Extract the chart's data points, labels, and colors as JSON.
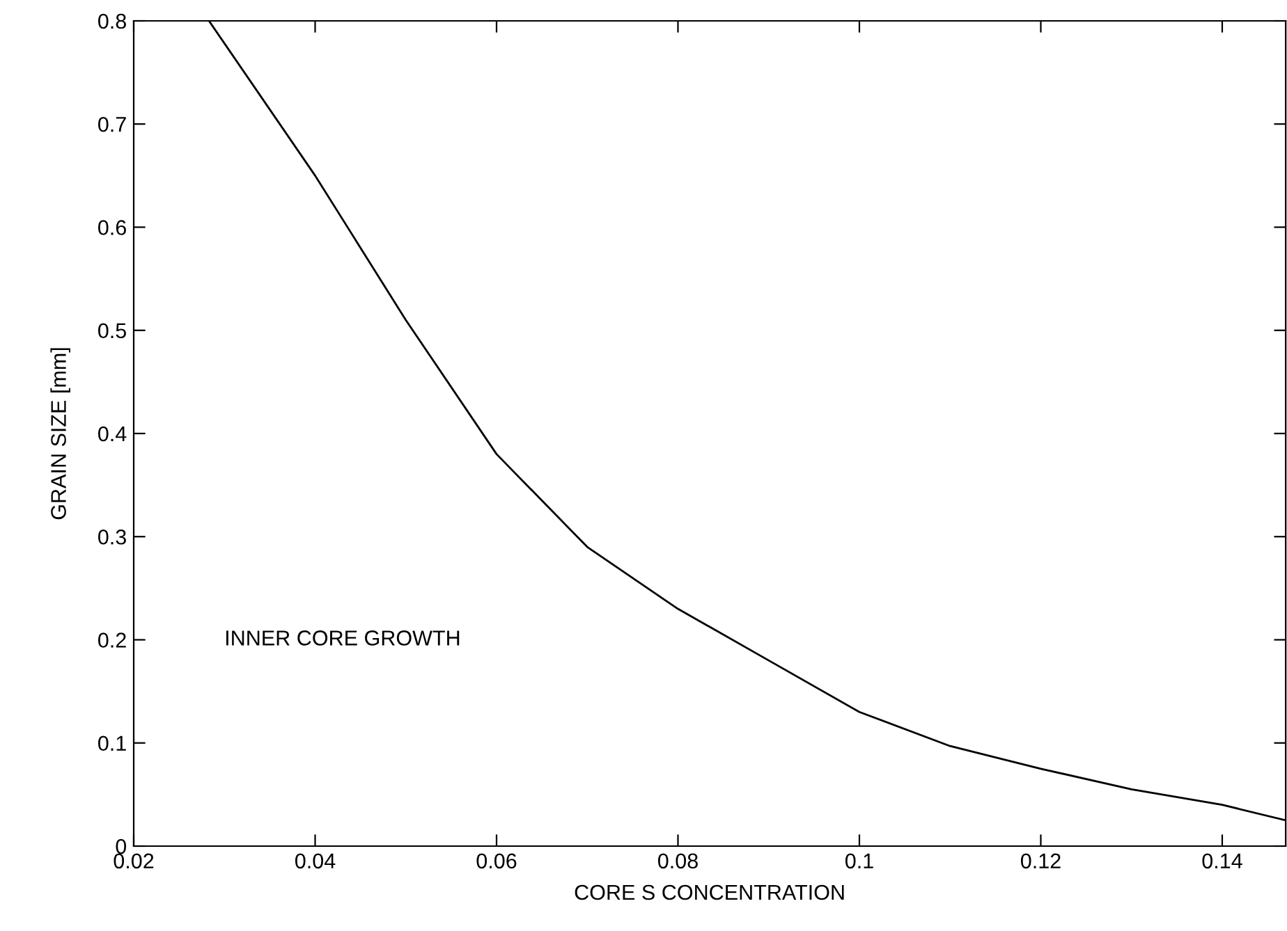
{
  "chart_data": {
    "type": "line",
    "xlabel": "CORE S CONCENTRATION",
    "ylabel": "GRAIN SIZE [mm]",
    "x": [
      0.0283,
      0.04,
      0.05,
      0.06,
      0.07,
      0.08,
      0.09,
      0.1,
      0.11,
      0.12,
      0.13,
      0.14,
      0.147
    ],
    "series": [
      {
        "color": "#000000",
        "values": [
          0.8,
          0.65,
          0.51,
          0.38,
          0.29,
          0.23,
          0.18,
          0.13,
          0.097,
          0.075,
          0.055,
          0.04,
          0.025
        ]
      }
    ],
    "xlim": [
      0.02,
      0.147
    ],
    "ylim": [
      0,
      0.8
    ],
    "xticks": [
      0.02,
      0.04,
      0.06,
      0.08,
      0.1,
      0.12,
      0.14
    ],
    "yticks": [
      0,
      0.1,
      0.2,
      0.3,
      0.4,
      0.5,
      0.6,
      0.7,
      0.8
    ],
    "annotations": [
      "INNER CORE GROWTH"
    ],
    "grid": false,
    "marker": "none",
    "line_style": "solid"
  }
}
